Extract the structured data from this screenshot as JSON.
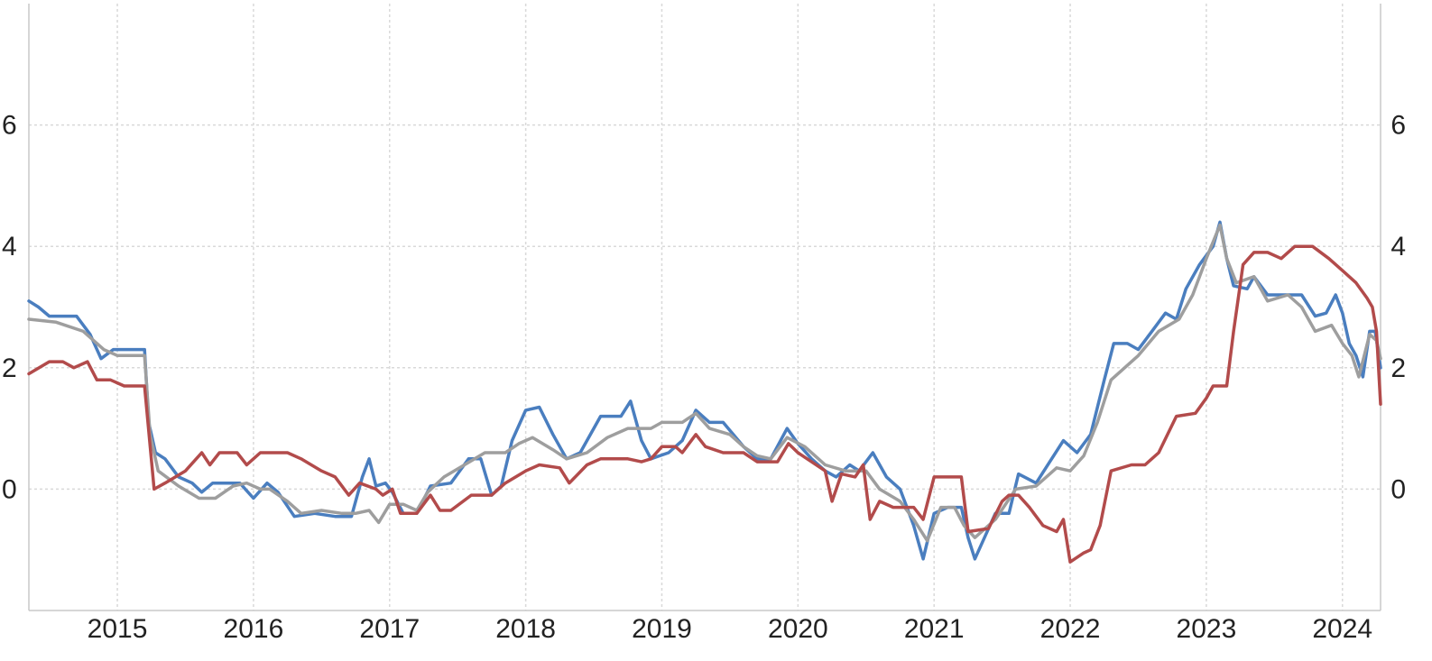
{
  "chart_data": {
    "type": "line",
    "title": "",
    "xlabel": "",
    "ylabel": "",
    "xlim": [
      2014.35,
      2024.28
    ],
    "ylim": [
      -2,
      8
    ],
    "y_ticks": [
      0,
      2,
      4,
      6
    ],
    "y_tick_labels": [
      "0",
      "2",
      "4",
      "6"
    ],
    "x_ticks": [
      2015,
      2016,
      2017,
      2018,
      2019,
      2020,
      2021,
      2022,
      2023,
      2024
    ],
    "x_tick_labels": [
      "2015",
      "2016",
      "2017",
      "2018",
      "2019",
      "2020",
      "2021",
      "2022",
      "2023",
      "2024"
    ],
    "grid": true,
    "legend": "none",
    "series": [
      {
        "color": "#4a7ebf",
        "points": [
          [
            2014.35,
            3.1
          ],
          [
            2014.42,
            3.0
          ],
          [
            2014.5,
            2.85
          ],
          [
            2014.7,
            2.85
          ],
          [
            2014.8,
            2.55
          ],
          [
            2014.88,
            2.15
          ],
          [
            2014.97,
            2.3
          ],
          [
            2015.2,
            2.3
          ],
          [
            2015.23,
            1.1
          ],
          [
            2015.28,
            0.6
          ],
          [
            2015.35,
            0.5
          ],
          [
            2015.45,
            0.2
          ],
          [
            2015.55,
            0.1
          ],
          [
            2015.62,
            -0.05
          ],
          [
            2015.7,
            0.1
          ],
          [
            2015.9,
            0.1
          ],
          [
            2016.0,
            -0.15
          ],
          [
            2016.1,
            0.1
          ],
          [
            2016.18,
            -0.05
          ],
          [
            2016.3,
            -0.45
          ],
          [
            2016.45,
            -0.4
          ],
          [
            2016.6,
            -0.45
          ],
          [
            2016.72,
            -0.45
          ],
          [
            2016.8,
            0.2
          ],
          [
            2016.85,
            0.5
          ],
          [
            2016.9,
            0.05
          ],
          [
            2016.97,
            0.1
          ],
          [
            2017.02,
            -0.05
          ],
          [
            2017.1,
            -0.4
          ],
          [
            2017.2,
            -0.4
          ],
          [
            2017.3,
            0.05
          ],
          [
            2017.45,
            0.1
          ],
          [
            2017.58,
            0.5
          ],
          [
            2017.67,
            0.5
          ],
          [
            2017.75,
            -0.1
          ],
          [
            2017.82,
            0.05
          ],
          [
            2017.9,
            0.8
          ],
          [
            2018.0,
            1.3
          ],
          [
            2018.1,
            1.35
          ],
          [
            2018.2,
            0.9
          ],
          [
            2018.3,
            0.5
          ],
          [
            2018.4,
            0.6
          ],
          [
            2018.55,
            1.2
          ],
          [
            2018.7,
            1.2
          ],
          [
            2018.77,
            1.45
          ],
          [
            2018.85,
            0.8
          ],
          [
            2018.92,
            0.5
          ],
          [
            2019.05,
            0.6
          ],
          [
            2019.15,
            0.8
          ],
          [
            2019.25,
            1.3
          ],
          [
            2019.35,
            1.1
          ],
          [
            2019.45,
            1.1
          ],
          [
            2019.6,
            0.7
          ],
          [
            2019.7,
            0.5
          ],
          [
            2019.8,
            0.5
          ],
          [
            2019.92,
            1.0
          ],
          [
            2020.0,
            0.75
          ],
          [
            2020.1,
            0.5
          ],
          [
            2020.2,
            0.3
          ],
          [
            2020.28,
            0.2
          ],
          [
            2020.38,
            0.4
          ],
          [
            2020.45,
            0.3
          ],
          [
            2020.55,
            0.6
          ],
          [
            2020.65,
            0.2
          ],
          [
            2020.75,
            0.0
          ],
          [
            2020.85,
            -0.6
          ],
          [
            2020.92,
            -1.15
          ],
          [
            2021.0,
            -0.4
          ],
          [
            2021.1,
            -0.3
          ],
          [
            2021.2,
            -0.3
          ],
          [
            2021.25,
            -0.8
          ],
          [
            2021.3,
            -1.15
          ],
          [
            2021.45,
            -0.4
          ],
          [
            2021.55,
            -0.4
          ],
          [
            2021.62,
            0.25
          ],
          [
            2021.75,
            0.1
          ],
          [
            2021.85,
            0.45
          ],
          [
            2021.95,
            0.8
          ],
          [
            2022.05,
            0.6
          ],
          [
            2022.15,
            0.9
          ],
          [
            2022.25,
            1.8
          ],
          [
            2022.32,
            2.4
          ],
          [
            2022.42,
            2.4
          ],
          [
            2022.5,
            2.3
          ],
          [
            2022.6,
            2.6
          ],
          [
            2022.7,
            2.9
          ],
          [
            2022.78,
            2.8
          ],
          [
            2022.85,
            3.3
          ],
          [
            2022.95,
            3.7
          ],
          [
            2023.05,
            4.0
          ],
          [
            2023.1,
            4.4
          ],
          [
            2023.15,
            3.8
          ],
          [
            2023.2,
            3.35
          ],
          [
            2023.3,
            3.3
          ],
          [
            2023.35,
            3.5
          ],
          [
            2023.45,
            3.2
          ],
          [
            2023.6,
            3.2
          ],
          [
            2023.7,
            3.2
          ],
          [
            2023.8,
            2.85
          ],
          [
            2023.88,
            2.9
          ],
          [
            2023.95,
            3.2
          ],
          [
            2024.0,
            2.9
          ],
          [
            2024.05,
            2.4
          ],
          [
            2024.1,
            2.2
          ],
          [
            2024.15,
            1.85
          ],
          [
            2024.2,
            2.6
          ],
          [
            2024.24,
            2.6
          ],
          [
            2024.28,
            2.0
          ]
        ]
      },
      {
        "color": "#9e9e9e",
        "points": [
          [
            2014.35,
            2.8
          ],
          [
            2014.55,
            2.75
          ],
          [
            2014.75,
            2.6
          ],
          [
            2014.9,
            2.3
          ],
          [
            2015.0,
            2.2
          ],
          [
            2015.2,
            2.2
          ],
          [
            2015.24,
            0.9
          ],
          [
            2015.3,
            0.3
          ],
          [
            2015.45,
            0.05
          ],
          [
            2015.6,
            -0.15
          ],
          [
            2015.72,
            -0.15
          ],
          [
            2015.85,
            0.05
          ],
          [
            2015.95,
            0.1
          ],
          [
            2016.05,
            0.0
          ],
          [
            2016.12,
            0.0
          ],
          [
            2016.25,
            -0.2
          ],
          [
            2016.35,
            -0.4
          ],
          [
            2016.5,
            -0.35
          ],
          [
            2016.65,
            -0.4
          ],
          [
            2016.75,
            -0.4
          ],
          [
            2016.85,
            -0.35
          ],
          [
            2016.92,
            -0.55
          ],
          [
            2017.0,
            -0.25
          ],
          [
            2017.1,
            -0.25
          ],
          [
            2017.2,
            -0.35
          ],
          [
            2017.28,
            -0.05
          ],
          [
            2017.4,
            0.2
          ],
          [
            2017.55,
            0.4
          ],
          [
            2017.7,
            0.6
          ],
          [
            2017.85,
            0.6
          ],
          [
            2017.95,
            0.75
          ],
          [
            2018.05,
            0.85
          ],
          [
            2018.2,
            0.65
          ],
          [
            2018.3,
            0.5
          ],
          [
            2018.45,
            0.6
          ],
          [
            2018.6,
            0.85
          ],
          [
            2018.75,
            1.0
          ],
          [
            2018.92,
            1.0
          ],
          [
            2019.0,
            1.1
          ],
          [
            2019.15,
            1.1
          ],
          [
            2019.25,
            1.25
          ],
          [
            2019.35,
            1.0
          ],
          [
            2019.5,
            0.9
          ],
          [
            2019.6,
            0.7
          ],
          [
            2019.7,
            0.55
          ],
          [
            2019.8,
            0.5
          ],
          [
            2019.92,
            0.85
          ],
          [
            2020.05,
            0.7
          ],
          [
            2020.2,
            0.4
          ],
          [
            2020.35,
            0.3
          ],
          [
            2020.5,
            0.3
          ],
          [
            2020.6,
            0.0
          ],
          [
            2020.75,
            -0.2
          ],
          [
            2020.85,
            -0.5
          ],
          [
            2020.95,
            -0.85
          ],
          [
            2021.05,
            -0.3
          ],
          [
            2021.15,
            -0.3
          ],
          [
            2021.22,
            -0.6
          ],
          [
            2021.3,
            -0.8
          ],
          [
            2021.45,
            -0.5
          ],
          [
            2021.6,
            0.0
          ],
          [
            2021.75,
            0.05
          ],
          [
            2021.9,
            0.35
          ],
          [
            2022.0,
            0.3
          ],
          [
            2022.1,
            0.55
          ],
          [
            2022.2,
            1.1
          ],
          [
            2022.3,
            1.8
          ],
          [
            2022.4,
            2.0
          ],
          [
            2022.5,
            2.2
          ],
          [
            2022.65,
            2.6
          ],
          [
            2022.8,
            2.8
          ],
          [
            2022.9,
            3.2
          ],
          [
            2023.0,
            3.8
          ],
          [
            2023.1,
            4.35
          ],
          [
            2023.15,
            3.8
          ],
          [
            2023.22,
            3.4
          ],
          [
            2023.35,
            3.5
          ],
          [
            2023.45,
            3.1
          ],
          [
            2023.6,
            3.2
          ],
          [
            2023.7,
            3.0
          ],
          [
            2023.8,
            2.6
          ],
          [
            2023.92,
            2.7
          ],
          [
            2024.0,
            2.4
          ],
          [
            2024.07,
            2.2
          ],
          [
            2024.12,
            1.85
          ],
          [
            2024.2,
            2.55
          ],
          [
            2024.25,
            2.45
          ],
          [
            2024.28,
            2.15
          ]
        ]
      },
      {
        "color": "#b24b4b",
        "points": [
          [
            2014.35,
            1.9
          ],
          [
            2014.5,
            2.1
          ],
          [
            2014.6,
            2.1
          ],
          [
            2014.68,
            2.0
          ],
          [
            2014.78,
            2.1
          ],
          [
            2014.85,
            1.8
          ],
          [
            2014.95,
            1.8
          ],
          [
            2015.05,
            1.7
          ],
          [
            2015.2,
            1.7
          ],
          [
            2015.27,
            0.0
          ],
          [
            2015.35,
            0.1
          ],
          [
            2015.5,
            0.3
          ],
          [
            2015.62,
            0.6
          ],
          [
            2015.68,
            0.4
          ],
          [
            2015.75,
            0.6
          ],
          [
            2015.88,
            0.6
          ],
          [
            2015.95,
            0.4
          ],
          [
            2016.05,
            0.6
          ],
          [
            2016.25,
            0.6
          ],
          [
            2016.35,
            0.5
          ],
          [
            2016.5,
            0.3
          ],
          [
            2016.6,
            0.2
          ],
          [
            2016.7,
            -0.1
          ],
          [
            2016.78,
            0.1
          ],
          [
            2016.9,
            0.0
          ],
          [
            2016.95,
            -0.1
          ],
          [
            2017.02,
            0.0
          ],
          [
            2017.08,
            -0.4
          ],
          [
            2017.2,
            -0.4
          ],
          [
            2017.3,
            -0.1
          ],
          [
            2017.37,
            -0.35
          ],
          [
            2017.45,
            -0.35
          ],
          [
            2017.6,
            -0.1
          ],
          [
            2017.75,
            -0.1
          ],
          [
            2017.85,
            0.1
          ],
          [
            2018.0,
            0.3
          ],
          [
            2018.1,
            0.4
          ],
          [
            2018.25,
            0.35
          ],
          [
            2018.32,
            0.1
          ],
          [
            2018.45,
            0.4
          ],
          [
            2018.55,
            0.5
          ],
          [
            2018.75,
            0.5
          ],
          [
            2018.85,
            0.45
          ],
          [
            2018.92,
            0.5
          ],
          [
            2019.0,
            0.7
          ],
          [
            2019.1,
            0.7
          ],
          [
            2019.15,
            0.6
          ],
          [
            2019.25,
            0.9
          ],
          [
            2019.32,
            0.7
          ],
          [
            2019.45,
            0.6
          ],
          [
            2019.6,
            0.6
          ],
          [
            2019.7,
            0.45
          ],
          [
            2019.85,
            0.45
          ],
          [
            2019.93,
            0.75
          ],
          [
            2020.0,
            0.6
          ],
          [
            2020.1,
            0.45
          ],
          [
            2020.2,
            0.3
          ],
          [
            2020.25,
            -0.2
          ],
          [
            2020.32,
            0.25
          ],
          [
            2020.42,
            0.2
          ],
          [
            2020.48,
            0.4
          ],
          [
            2020.53,
            -0.5
          ],
          [
            2020.6,
            -0.2
          ],
          [
            2020.7,
            -0.3
          ],
          [
            2020.85,
            -0.3
          ],
          [
            2020.92,
            -0.5
          ],
          [
            2021.0,
            0.2
          ],
          [
            2021.2,
            0.2
          ],
          [
            2021.25,
            -0.7
          ],
          [
            2021.4,
            -0.65
          ],
          [
            2021.5,
            -0.2
          ],
          [
            2021.55,
            -0.1
          ],
          [
            2021.62,
            -0.1
          ],
          [
            2021.7,
            -0.3
          ],
          [
            2021.8,
            -0.6
          ],
          [
            2021.9,
            -0.7
          ],
          [
            2021.95,
            -0.5
          ],
          [
            2022.0,
            -1.2
          ],
          [
            2022.1,
            -1.05
          ],
          [
            2022.15,
            -1.0
          ],
          [
            2022.22,
            -0.6
          ],
          [
            2022.3,
            0.3
          ],
          [
            2022.45,
            0.4
          ],
          [
            2022.55,
            0.4
          ],
          [
            2022.65,
            0.6
          ],
          [
            2022.78,
            1.2
          ],
          [
            2022.92,
            1.25
          ],
          [
            2023.0,
            1.5
          ],
          [
            2023.05,
            1.7
          ],
          [
            2023.15,
            1.7
          ],
          [
            2023.2,
            2.6
          ],
          [
            2023.27,
            3.7
          ],
          [
            2023.35,
            3.9
          ],
          [
            2023.45,
            3.9
          ],
          [
            2023.55,
            3.8
          ],
          [
            2023.65,
            4.0
          ],
          [
            2023.78,
            4.0
          ],
          [
            2023.9,
            3.8
          ],
          [
            2024.0,
            3.6
          ],
          [
            2024.1,
            3.4
          ],
          [
            2024.18,
            3.15
          ],
          [
            2024.22,
            3.0
          ],
          [
            2024.25,
            2.6
          ],
          [
            2024.28,
            1.4
          ]
        ]
      }
    ]
  }
}
